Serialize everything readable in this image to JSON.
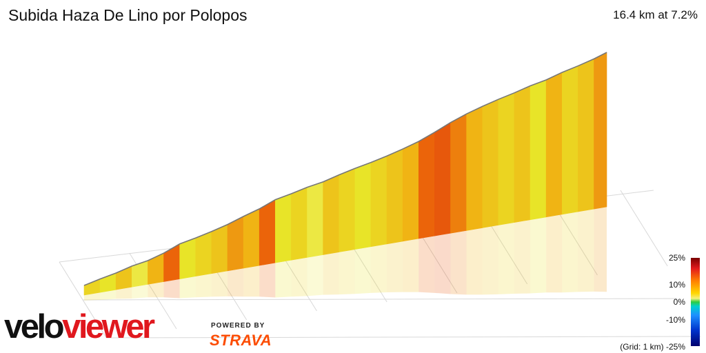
{
  "chart_data": {
    "type": "area",
    "title": "Subida Haza De Lino por Polopos",
    "summary": "16.4 km at 7.2%",
    "distance_km": [
      0,
      0.5,
      1,
      1.5,
      2,
      2.5,
      3,
      3.5,
      4,
      4.5,
      5,
      5.5,
      6,
      6.5,
      7,
      7.5,
      8,
      8.5,
      9,
      9.5,
      10,
      10.5,
      11,
      11.5,
      12,
      12.5,
      13,
      13.5,
      14,
      14.5,
      15,
      15.5,
      16,
      16.4
    ],
    "gradient_pct": [
      5,
      7,
      6,
      8,
      5,
      9,
      12,
      6,
      7,
      8,
      10,
      9,
      12,
      6,
      7,
      5,
      8,
      7,
      6,
      7,
      8,
      9,
      12,
      13,
      11,
      9,
      8,
      7,
      8,
      6,
      9,
      7,
      8,
      10
    ],
    "color_scale": {
      "labels": [
        "25%",
        "10%",
        "0%",
        "-10%",
        "-25%"
      ],
      "stops": [
        "#7a0000",
        "#e31a1c",
        "#ff7f00",
        "#ffd600",
        "#2ecc40",
        "#00d0d0",
        "#1e90ff",
        "#00006e"
      ]
    },
    "grid_note": "(Grid: 1 km)"
  },
  "branding": {
    "velo": "velo",
    "viewer": "viewer",
    "powered_by": "POWERED BY",
    "strava": "STRAVA"
  }
}
